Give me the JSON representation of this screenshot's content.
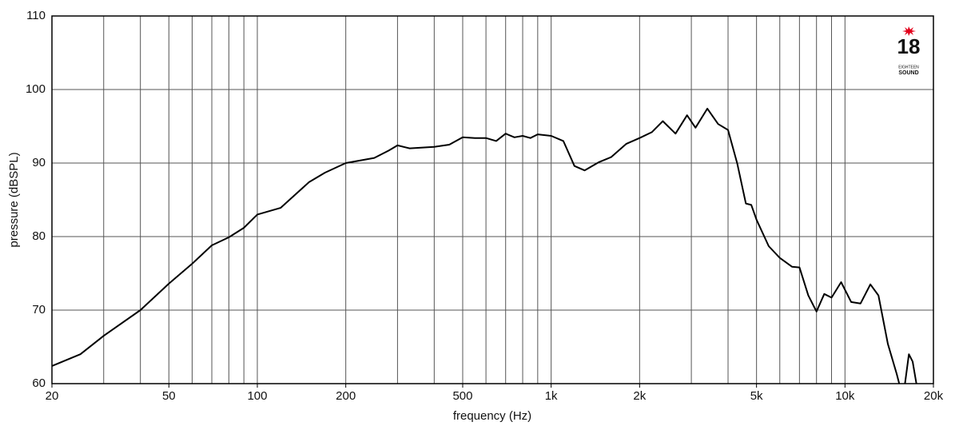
{
  "chart_data": {
    "type": "line",
    "xlabel": "frequency (Hz)",
    "ylabel": "pressure (dBSPL)",
    "log_x": true,
    "grid": true,
    "color": "#000000",
    "xlim": [
      20,
      20000
    ],
    "ylim": [
      60,
      110
    ],
    "xticks": [
      20,
      50,
      100,
      200,
      500,
      {
        "value": 1000,
        "label": "1k"
      },
      {
        "value": 2000,
        "label": "2k"
      },
      {
        "value": 5000,
        "label": "5k"
      },
      {
        "value": 10000,
        "label": "10k"
      },
      {
        "value": 20000,
        "label": "20k"
      }
    ],
    "xgrid": [
      30,
      40,
      50,
      60,
      70,
      80,
      90,
      100,
      200,
      300,
      400,
      500,
      600,
      700,
      800,
      900,
      1000,
      2000,
      3000,
      4000,
      5000,
      6000,
      7000,
      8000,
      9000,
      10000
    ],
    "yticks": [
      60,
      70,
      80,
      90,
      100,
      110
    ],
    "x": [
      20,
      25,
      30,
      40,
      50,
      60,
      70,
      80,
      90,
      100,
      120,
      150,
      170,
      200,
      250,
      280,
      300,
      330,
      400,
      450,
      500,
      550,
      600,
      650,
      700,
      750,
      800,
      850,
      900,
      1000,
      1100,
      1200,
      1300,
      1450,
      1600,
      1800,
      2000,
      2200,
      2400,
      2650,
      2900,
      3100,
      3400,
      3700,
      4000,
      4300,
      4600,
      4800,
      5000,
      5500,
      6000,
      6600,
      7000,
      7500,
      8000,
      8500,
      9000,
      9700,
      10500,
      11300,
      12200,
      13000,
      14000,
      15000,
      15300,
      15800,
      16000,
      16500,
      17000,
      17500
    ],
    "values": [
      62.4,
      64.0,
      66.5,
      70.0,
      73.6,
      76.3,
      78.8,
      79.9,
      81.2,
      83.0,
      83.9,
      87.4,
      88.7,
      90.0,
      90.7,
      91.7,
      92.4,
      92.0,
      92.2,
      92.5,
      93.5,
      93.4,
      93.4,
      93.0,
      94.0,
      93.5,
      93.7,
      93.4,
      93.9,
      93.7,
      93.0,
      89.6,
      89.0,
      90.1,
      90.8,
      92.6,
      93.4,
      94.2,
      95.7,
      94.0,
      96.5,
      94.8,
      97.4,
      95.3,
      94.5,
      89.9,
      84.5,
      84.3,
      82.3,
      78.7,
      77.1,
      75.9,
      75.8,
      72.0,
      69.8,
      72.2,
      71.7,
      73.8,
      71.1,
      70.9,
      73.5,
      72.0,
      65.4,
      61.3,
      60.0,
      null,
      60.0,
      64.0,
      63.0,
      60.0
    ]
  },
  "logo": {
    "number": "18",
    "line1": "EIGHTEEN",
    "line2": "SOUND"
  }
}
